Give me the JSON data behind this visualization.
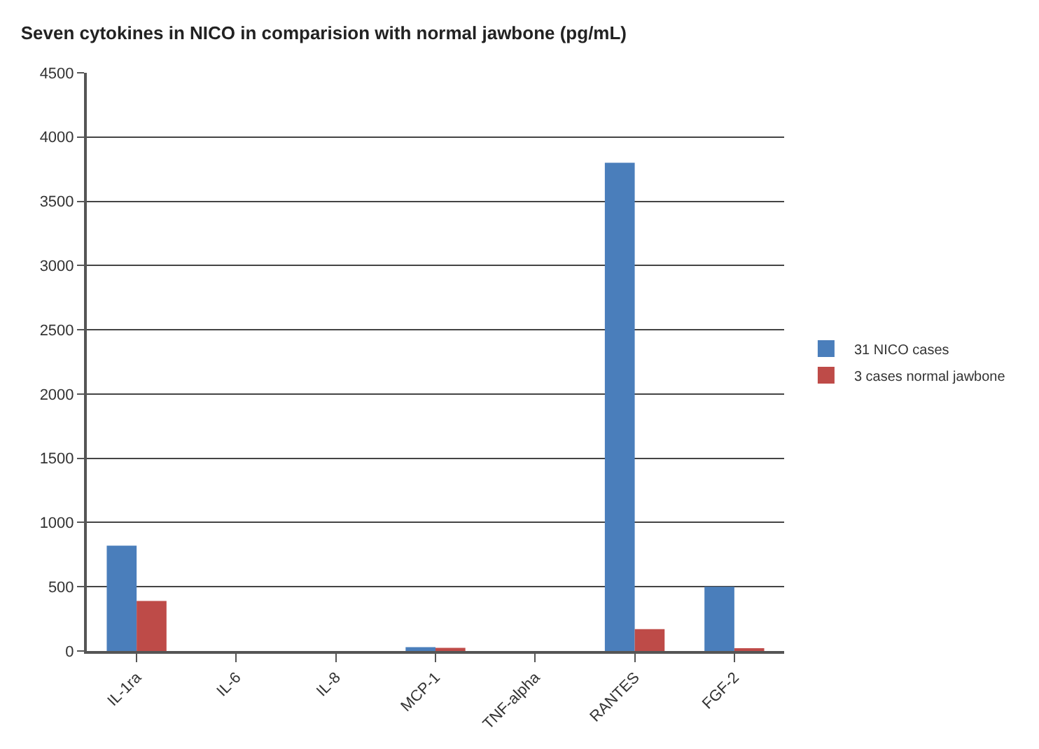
{
  "chart_data": {
    "type": "bar",
    "title": "Seven cytokines in NICO in comparision with normal jawbone (pg/mL)",
    "categories": [
      "IL-1ra",
      "IL-6",
      "IL-8",
      "MCP-1",
      "TNF-alpha",
      "RANTES",
      "FGF-2"
    ],
    "series": [
      {
        "name": "31 NICO cases",
        "color": "#4a7ebb",
        "values": [
          820,
          0,
          0,
          30,
          0,
          3800,
          500
        ]
      },
      {
        "name": "3 cases normal jawbone",
        "color": "#be4b48",
        "values": [
          390,
          0,
          0,
          25,
          0,
          170,
          15
        ]
      }
    ],
    "ylim": [
      0,
      4500
    ],
    "yticks": [
      0,
      500,
      1000,
      1500,
      2000,
      2500,
      3000,
      3500,
      4000,
      4500
    ],
    "grid": "y",
    "legend": "right"
  }
}
